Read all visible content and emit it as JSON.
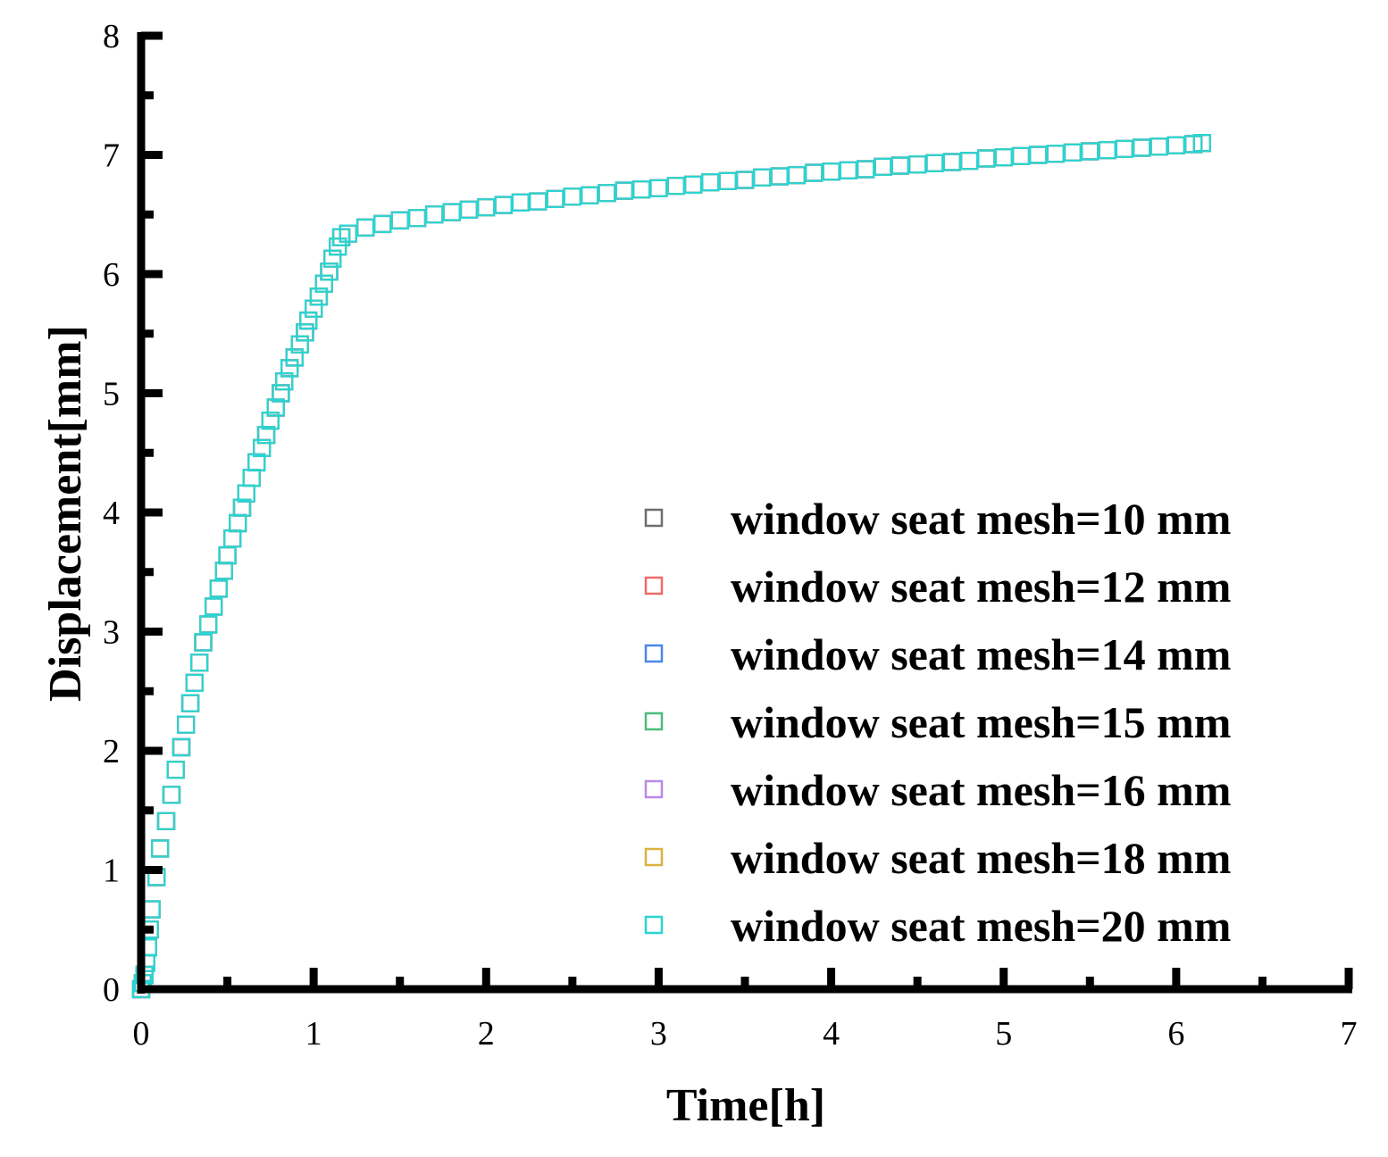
{
  "chart_data": {
    "type": "scatter",
    "title": "",
    "xlabel": "Time[h]",
    "ylabel": "Displacement[mm]",
    "xlim": [
      0,
      7
    ],
    "ylim": [
      0,
      8
    ],
    "xticks": [
      "0",
      "1",
      "2",
      "3",
      "4",
      "5",
      "6",
      "7"
    ],
    "yticks": [
      "0",
      "1",
      "2",
      "3",
      "4",
      "5",
      "6",
      "7",
      "8"
    ],
    "grid": false,
    "legend_position": "bottom-right",
    "marker": "open-square",
    "x": [
      0,
      0.01,
      0.02,
      0.03,
      0.04,
      0.05,
      0.06,
      0.09,
      0.11,
      0.145,
      0.176,
      0.2,
      0.233,
      0.26,
      0.285,
      0.31,
      0.337,
      0.36,
      0.39,
      0.42,
      0.45,
      0.48,
      0.5,
      0.53,
      0.56,
      0.585,
      0.61,
      0.64,
      0.67,
      0.7,
      0.725,
      0.75,
      0.78,
      0.81,
      0.83,
      0.86,
      0.89,
      0.92,
      0.95,
      0.97,
      1.0,
      1.03,
      1.06,
      1.09,
      1.11,
      1.14,
      1.16,
      1.2,
      1.3,
      1.4,
      1.5,
      1.6,
      1.7,
      1.8,
      1.9,
      2.0,
      2.1,
      2.2,
      2.3,
      2.4,
      2.5,
      2.6,
      2.7,
      2.8,
      2.9,
      3.0,
      3.1,
      3.2,
      3.3,
      3.4,
      3.5,
      3.6,
      3.7,
      3.8,
      3.9,
      4.0,
      4.1,
      4.2,
      4.3,
      4.4,
      4.5,
      4.6,
      4.7,
      4.8,
      4.9,
      5.0,
      5.1,
      5.2,
      5.3,
      5.4,
      5.5,
      5.6,
      5.7,
      5.8,
      5.9,
      6.0,
      6.1,
      6.15
    ],
    "y": [
      0,
      0.05,
      0.12,
      0.22,
      0.35,
      0.5,
      0.67,
      0.94,
      1.18,
      1.41,
      1.63,
      1.84,
      2.03,
      2.22,
      2.4,
      2.57,
      2.74,
      2.91,
      3.06,
      3.21,
      3.36,
      3.51,
      3.64,
      3.78,
      3.91,
      4.04,
      4.16,
      4.29,
      4.42,
      4.54,
      4.65,
      4.77,
      4.88,
      5.0,
      5.1,
      5.21,
      5.3,
      5.41,
      5.51,
      5.61,
      5.71,
      5.81,
      5.92,
      6.02,
      6.13,
      6.23,
      6.31,
      6.34,
      6.39,
      6.42,
      6.45,
      6.47,
      6.5,
      6.52,
      6.54,
      6.56,
      6.58,
      6.6,
      6.61,
      6.63,
      6.65,
      6.66,
      6.68,
      6.7,
      6.71,
      6.72,
      6.74,
      6.75,
      6.77,
      6.78,
      6.79,
      6.81,
      6.82,
      6.83,
      6.85,
      6.86,
      6.87,
      6.88,
      6.9,
      6.91,
      6.92,
      6.93,
      6.94,
      6.95,
      6.97,
      6.98,
      6.99,
      7.0,
      7.01,
      7.02,
      7.03,
      7.04,
      7.05,
      7.06,
      7.07,
      7.08,
      7.09,
      7.1
    ],
    "series": [
      {
        "name": "window seat mesh=10 mm",
        "color": "#6e6e6e"
      },
      {
        "name": "window seat mesh=12 mm",
        "color": "#f06a6a"
      },
      {
        "name": "window seat mesh=14 mm",
        "color": "#4a86e8"
      },
      {
        "name": "window seat mesh=15 mm",
        "color": "#4dbb7a"
      },
      {
        "name": "window seat mesh=16 mm",
        "color": "#b98ae8"
      },
      {
        "name": "window seat mesh=18 mm",
        "color": "#d9b340"
      },
      {
        "name": "window seat mesh=20 mm",
        "color": "#2ad4d4"
      }
    ]
  }
}
